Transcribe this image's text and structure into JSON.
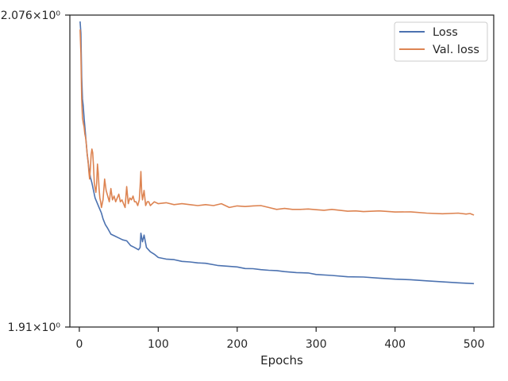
{
  "chart_data": {
    "type": "line",
    "title": "",
    "xlabel": "Epochs",
    "ylabel": "",
    "yscale": "log",
    "xlim": [
      -12,
      525
    ],
    "ylim": [
      1.91,
      2.076
    ],
    "x_ticks": [
      0,
      100,
      200,
      300,
      400,
      500
    ],
    "y_tick_values": [
      2.076,
      1.91
    ],
    "y_tick_labels": [
      "2.076×10⁰",
      "1.91×10⁰"
    ],
    "grid": false,
    "legend": {
      "position": "top-right"
    },
    "colors": {
      "Loss": "#4c72b0",
      "Val. loss": "#dd8452"
    },
    "series": [
      {
        "name": "Loss",
        "x": [
          1,
          2,
          3,
          4,
          5,
          6,
          8,
          10,
          12,
          14,
          16,
          18,
          20,
          22,
          25,
          28,
          30,
          33,
          36,
          40,
          45,
          50,
          55,
          60,
          65,
          70,
          75,
          77,
          78,
          80,
          82,
          85,
          90,
          95,
          100,
          110,
          120,
          130,
          140,
          150,
          160,
          175,
          190,
          200,
          210,
          220,
          230,
          240,
          250,
          260,
          275,
          290,
          300,
          320,
          340,
          360,
          380,
          400,
          420,
          440,
          460,
          480,
          490,
          500
        ],
        "y": [
          2.0725,
          2.066,
          2.042,
          2.03,
          2.026,
          2.02,
          2.01,
          2.0,
          1.993,
          1.988,
          1.985,
          1.981,
          1.977,
          1.975,
          1.972,
          1.969,
          1.966,
          1.963,
          1.961,
          1.958,
          1.957,
          1.956,
          1.955,
          1.9545,
          1.952,
          1.951,
          1.9498,
          1.951,
          1.9585,
          1.954,
          1.9575,
          1.951,
          1.9488,
          1.9475,
          1.9458,
          1.945,
          1.9447,
          1.9438,
          1.9435,
          1.943,
          1.9428,
          1.9417,
          1.9412,
          1.9409,
          1.9401,
          1.94,
          1.9395,
          1.9392,
          1.939,
          1.9385,
          1.938,
          1.9378,
          1.937,
          1.9365,
          1.9358,
          1.9357,
          1.9351,
          1.9346,
          1.9343,
          1.9337,
          1.9332,
          1.9327,
          1.9325,
          1.9323
        ]
      },
      {
        "name": "Val. loss",
        "x": [
          1,
          2,
          3,
          4,
          5,
          6,
          7,
          8,
          9,
          10,
          11,
          12,
          13,
          14,
          15,
          16,
          17,
          18,
          19,
          20,
          21,
          22,
          23,
          24,
          25,
          26,
          27,
          28,
          30,
          32,
          34,
          36,
          38,
          40,
          42,
          44,
          46,
          48,
          50,
          52,
          54,
          56,
          58,
          60,
          62,
          64,
          66,
          68,
          70,
          72,
          74,
          76,
          77,
          78,
          79,
          80,
          82,
          84,
          86,
          88,
          90,
          95,
          100,
          110,
          120,
          130,
          140,
          150,
          160,
          170,
          180,
          190,
          200,
          210,
          220,
          230,
          240,
          250,
          260,
          270,
          280,
          290,
          300,
          310,
          320,
          330,
          340,
          350,
          360,
          380,
          400,
          420,
          440,
          460,
          480,
          490,
          495,
          498,
          500
        ],
        "y": [
          2.068,
          2.055,
          2.03,
          2.02,
          2.017,
          2.015,
          2.011,
          2.009,
          2.005,
          2.0,
          1.997,
          1.991,
          1.987,
          1.993,
          2.0,
          2.003,
          2.001,
          1.994,
          1.985,
          1.982,
          1.98,
          1.985,
          1.995,
          1.99,
          1.982,
          1.977,
          1.975,
          1.972,
          1.976,
          1.987,
          1.981,
          1.978,
          1.975,
          1.982,
          1.976,
          1.978,
          1.975,
          1.977,
          1.979,
          1.975,
          1.976,
          1.974,
          1.972,
          1.983,
          1.974,
          1.977,
          1.976,
          1.978,
          1.975,
          1.975,
          1.973,
          1.976,
          1.983,
          1.991,
          1.98,
          1.976,
          1.981,
          1.973,
          1.975,
          1.975,
          1.973,
          1.975,
          1.974,
          1.9745,
          1.9735,
          1.974,
          1.9735,
          1.973,
          1.9735,
          1.973,
          1.974,
          1.972,
          1.9728,
          1.9725,
          1.9728,
          1.973,
          1.972,
          1.971,
          1.9715,
          1.971,
          1.971,
          1.9712,
          1.9708,
          1.9705,
          1.971,
          1.9705,
          1.97,
          1.9702,
          1.9698,
          1.9702,
          1.9696,
          1.9697,
          1.969,
          1.9687,
          1.969,
          1.9685,
          1.9688,
          1.9683,
          1.968
        ]
      }
    ]
  }
}
